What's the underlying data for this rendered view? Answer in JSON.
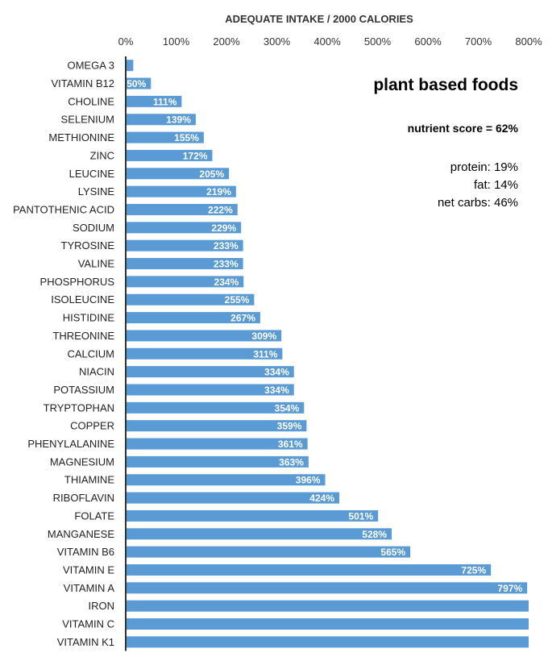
{
  "chart_data": {
    "type": "bar",
    "orientation": "horizontal",
    "title": "ADEQUATE INTAKE / 2000 CALORIES",
    "xlim": [
      0,
      800
    ],
    "x_ticks": [
      0,
      100,
      200,
      300,
      400,
      500,
      600,
      700,
      800
    ],
    "x_tick_labels": [
      "0%",
      "100%",
      "200%",
      "300%",
      "400%",
      "500%",
      "600%",
      "700%",
      "800%"
    ],
    "bar_color": "#5b9bd5",
    "categories": [
      "OMEGA 3",
      "VITAMIN B12",
      "CHOLINE",
      "SELENIUM",
      "METHIONINE",
      "ZINC",
      "LEUCINE",
      "LYSINE",
      "PANTOTHENIC ACID",
      "SODIUM",
      "TYROSINE",
      "VALINE",
      "PHOSPHORUS",
      "ISOLEUCINE",
      "HISTIDINE",
      "THREONINE",
      "CALCIUM",
      "NIACIN",
      "POTASSIUM",
      "TRYPTOPHAN",
      "COPPER",
      "PHENYLALANINE",
      "MAGNESIUM",
      "THIAMINE",
      "RIBOFLAVIN",
      "FOLATE",
      "MANGANESE",
      "VITAMIN B6",
      "VITAMIN E",
      "VITAMIN A",
      "IRON",
      "VITAMIN C",
      "VITAMIN K1"
    ],
    "values": [
      15,
      50,
      111,
      139,
      155,
      172,
      205,
      219,
      222,
      229,
      233,
      233,
      234,
      255,
      267,
      309,
      311,
      334,
      334,
      354,
      359,
      361,
      363,
      396,
      424,
      501,
      528,
      565,
      725,
      797,
      800,
      800,
      800
    ],
    "data_labels": [
      "",
      "50%",
      "111%",
      "139%",
      "155%",
      "172%",
      "205%",
      "219%",
      "222%",
      "229%",
      "233%",
      "233%",
      "234%",
      "255%",
      "267%",
      "309%",
      "311%",
      "334%",
      "334%",
      "354%",
      "359%",
      "361%",
      "363%",
      "396%",
      "424%",
      "501%",
      "528%",
      "565%",
      "725%",
      "797%",
      "",
      "",
      ""
    ]
  },
  "annotation": {
    "title": "plant based foods",
    "score": "nutrient score = 62%",
    "macros": [
      "protein: 19%",
      "fat: 14%",
      "net carbs: 46%"
    ]
  }
}
